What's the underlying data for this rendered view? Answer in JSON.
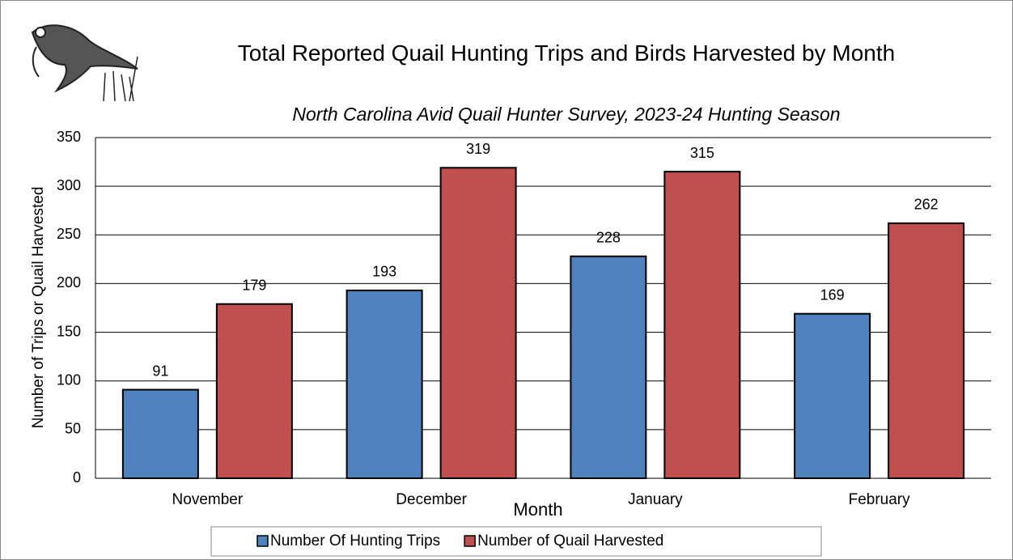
{
  "chart_data": {
    "type": "bar",
    "title": "Total Reported Quail Hunting Trips and Birds Harvested by Month",
    "subtitle": "North Carolina Avid Quail Hunter Survey, 2023-24 Hunting Season",
    "x_label": "Month",
    "y_label": "Number of Trips or Quail Harvested",
    "categories": [
      "November",
      "December",
      "January",
      "February"
    ],
    "series": [
      {
        "name": "Number Of Hunting Trips",
        "color": "#4f81bd",
        "values": [
          91,
          193,
          228,
          169
        ]
      },
      {
        "name": "Number of Quail Harvested",
        "color": "#c0504d",
        "values": [
          179,
          319,
          315,
          262
        ]
      }
    ],
    "ylim": [
      0,
      350
    ],
    "yticks": [
      0,
      50,
      100,
      150,
      200,
      250,
      300,
      350
    ],
    "grid": true,
    "legend": "bottom"
  }
}
